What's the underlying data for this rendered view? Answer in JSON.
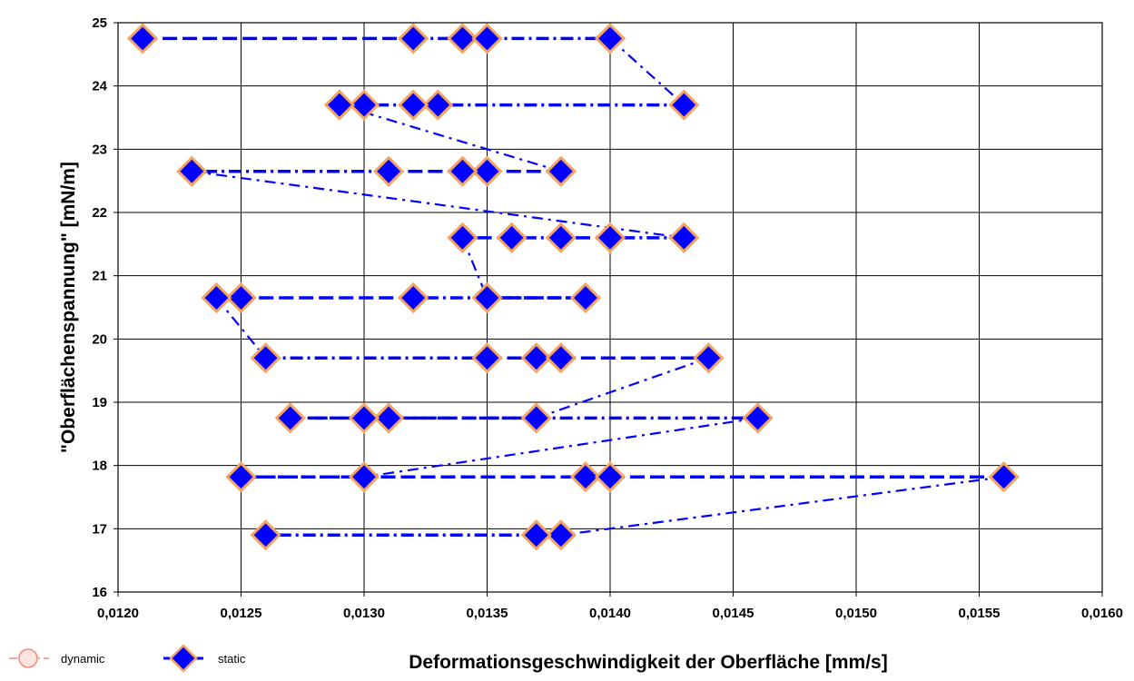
{
  "chart_data": {
    "type": "scatter",
    "xlabel": "Deformationsgeschwindigkeit der Oberfläche [mm/s]",
    "ylabel": "\"Oberflächenspannung\" [mN/m]",
    "xlim": [
      0.012,
      0.016
    ],
    "ylim": [
      16,
      25
    ],
    "x_ticks": [
      "0,0120",
      "0,0125",
      "0,0130",
      "0,0135",
      "0,0140",
      "0,0145",
      "0,0150",
      "0,0155",
      "0,0160"
    ],
    "y_ticks": [
      "16",
      "17",
      "18",
      "19",
      "20",
      "21",
      "22",
      "23",
      "24",
      "25"
    ],
    "grid": true,
    "legend_position": "bottom-left",
    "series": [
      {
        "name": "dynamic",
        "marker": "circle",
        "color": "#f08a7a",
        "points": []
      },
      {
        "name": "static",
        "marker": "diamond",
        "color": "#0000ff",
        "edge_color": "#f4a460",
        "points": [
          {
            "x": 0.0121,
            "y": 24.75
          },
          {
            "x": 0.0132,
            "y": 24.75
          },
          {
            "x": 0.0134,
            "y": 24.75
          },
          {
            "x": 0.0135,
            "y": 24.75
          },
          {
            "x": 0.014,
            "y": 24.75
          },
          {
            "x": 0.0143,
            "y": 23.7
          },
          {
            "x": 0.0133,
            "y": 23.7
          },
          {
            "x": 0.0132,
            "y": 23.7
          },
          {
            "x": 0.013,
            "y": 23.7
          },
          {
            "x": 0.0129,
            "y": 23.7
          },
          {
            "x": 0.0138,
            "y": 22.65
          },
          {
            "x": 0.0135,
            "y": 22.65
          },
          {
            "x": 0.0134,
            "y": 22.65
          },
          {
            "x": 0.0131,
            "y": 22.65
          },
          {
            "x": 0.0123,
            "y": 22.65
          },
          {
            "x": 0.0143,
            "y": 21.6
          },
          {
            "x": 0.014,
            "y": 21.6
          },
          {
            "x": 0.0138,
            "y": 21.6
          },
          {
            "x": 0.0136,
            "y": 21.6
          },
          {
            "x": 0.0134,
            "y": 21.6
          },
          {
            "x": 0.0135,
            "y": 20.65
          },
          {
            "x": 0.0139,
            "y": 20.65
          },
          {
            "x": 0.0132,
            "y": 20.65
          },
          {
            "x": 0.0125,
            "y": 20.65
          },
          {
            "x": 0.0124,
            "y": 20.65
          },
          {
            "x": 0.0126,
            "y": 19.7
          },
          {
            "x": 0.0135,
            "y": 19.7
          },
          {
            "x": 0.0137,
            "y": 19.7
          },
          {
            "x": 0.0138,
            "y": 19.7
          },
          {
            "x": 0.0144,
            "y": 19.7
          },
          {
            "x": 0.0137,
            "y": 18.75
          },
          {
            "x": 0.0131,
            "y": 18.75
          },
          {
            "x": 0.013,
            "y": 18.75
          },
          {
            "x": 0.0127,
            "y": 18.75
          },
          {
            "x": 0.0146,
            "y": 18.75
          },
          {
            "x": 0.013,
            "y": 17.82
          },
          {
            "x": 0.0125,
            "y": 17.82
          },
          {
            "x": 0.0139,
            "y": 17.82
          },
          {
            "x": 0.014,
            "y": 17.82
          },
          {
            "x": 0.0156,
            "y": 17.82
          },
          {
            "x": 0.0138,
            "y": 16.9
          },
          {
            "x": 0.0137,
            "y": 16.9
          },
          {
            "x": 0.0126,
            "y": 16.9
          }
        ]
      }
    ]
  }
}
